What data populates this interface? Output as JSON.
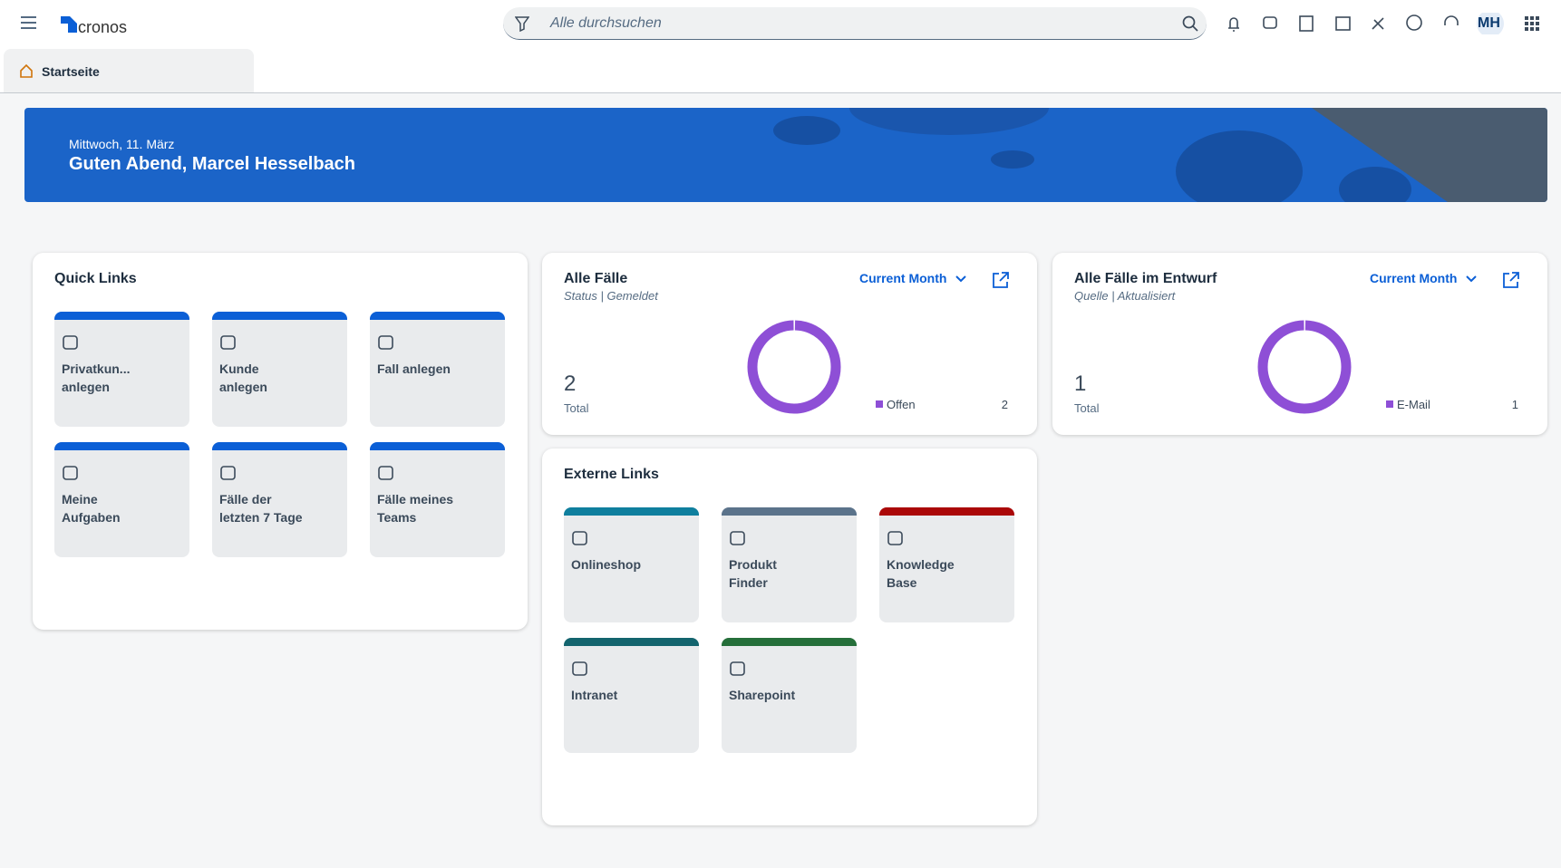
{
  "header": {
    "logo": "cronos",
    "search_placeholder": "Alle durchsuchen",
    "avatar": "MH"
  },
  "tabs": [
    "Startseite"
  ],
  "banner": {
    "date": "Mittwoch, 11. März",
    "greeting": "Guten Abend, Marcel Hesselbach"
  },
  "quick_links": {
    "title": "Quick Links",
    "items": [
      {
        "label": "Privatkun... anlegen",
        "color": "#0b5fd6"
      },
      {
        "label": "Kunde anlegen",
        "color": "#0b5fd6"
      },
      {
        "label": "Fall anlegen",
        "color": "#0b5fd6"
      },
      {
        "label": "Meine Aufgaben",
        "color": "#0b5fd6"
      },
      {
        "label": "Fälle der letzten 7 Tage",
        "color": "#0b5fd6"
      },
      {
        "label": "Fälle meines Teams",
        "color": "#0b5fd6"
      }
    ]
  },
  "cards": [
    {
      "title": "Alle Fälle",
      "subtitle": "Status | Gemeldet",
      "filter": "Current Month",
      "total": 2,
      "total_label": "Total",
      "segments": [
        {
          "name": "Offen",
          "value": 2,
          "color": "#8e4fd6"
        }
      ]
    },
    {
      "title": "Alle Fälle im Entwurf",
      "subtitle": "Quelle | Aktualisiert",
      "filter": "Current Month",
      "total": 1,
      "total_label": "Total",
      "segments": [
        {
          "name": "E-Mail",
          "value": 1,
          "color": "#8e4fd6"
        }
      ]
    }
  ],
  "external_links": {
    "title": "Externe Links",
    "items": [
      {
        "label": "Onlineshop",
        "color": "#0f7f9e"
      },
      {
        "label": "Produkt Finder",
        "color": "#5b738b"
      },
      {
        "label": "Knowledge Base",
        "color": "#aa0808"
      },
      {
        "label": "Intranet",
        "color": "#13646e"
      },
      {
        "label": "Sharepoint",
        "color": "#256f3a"
      }
    ]
  }
}
